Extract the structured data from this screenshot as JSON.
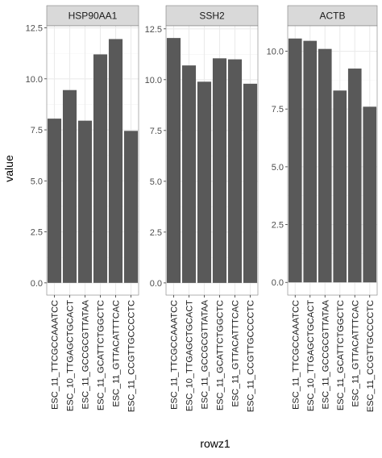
{
  "chart_data": {
    "type": "bar",
    "xlabel": "rowz1",
    "ylabel": "value",
    "categories": [
      "ESC_11_TTCGCCAAATCC",
      "ESC_10_TTGAGCTGCACT",
      "ESC_11_GCCGCGTTATAA",
      "ESC_11_GCATTCTGGCTC",
      "ESC_11_GTTACATTTCAC",
      "ESC_11_CCGTTGCCCCTC"
    ],
    "facets": [
      {
        "name": "HSP90AA1",
        "values": [
          8.05,
          9.45,
          7.95,
          11.2,
          11.95,
          7.45
        ],
        "ylim": [
          -0.6,
          12.6
        ],
        "yticks": [
          0.0,
          2.5,
          5.0,
          7.5,
          10.0,
          12.5
        ],
        "ytick_labels": [
          "0.0",
          "2.5",
          "5.0",
          "7.5",
          "10.0",
          "12.5"
        ]
      },
      {
        "name": "SSH2",
        "values": [
          12.05,
          10.7,
          9.9,
          11.05,
          11.0,
          9.8
        ],
        "ylim": [
          -0.6,
          12.65
        ],
        "yticks": [
          0.0,
          2.5,
          5.0,
          7.5,
          10.0,
          12.5
        ],
        "ytick_labels": [
          "0.0",
          "2.5",
          "5.0",
          "7.5",
          "10.0",
          "12.5"
        ]
      },
      {
        "name": "ACTB",
        "values": [
          10.55,
          10.45,
          10.1,
          8.3,
          9.25,
          7.6
        ],
        "ylim": [
          -0.55,
          11.1
        ],
        "yticks": [
          0.0,
          2.5,
          5.0,
          7.5,
          10.0
        ],
        "ytick_labels": [
          "0.0",
          "2.5",
          "5.0",
          "7.5",
          "10.0"
        ]
      }
    ],
    "grid": true,
    "colors": {
      "bar": "#595959",
      "panel_border": "#7f7f7f",
      "strip": "#d9d9d9",
      "grid": "#ebebeb"
    }
  }
}
